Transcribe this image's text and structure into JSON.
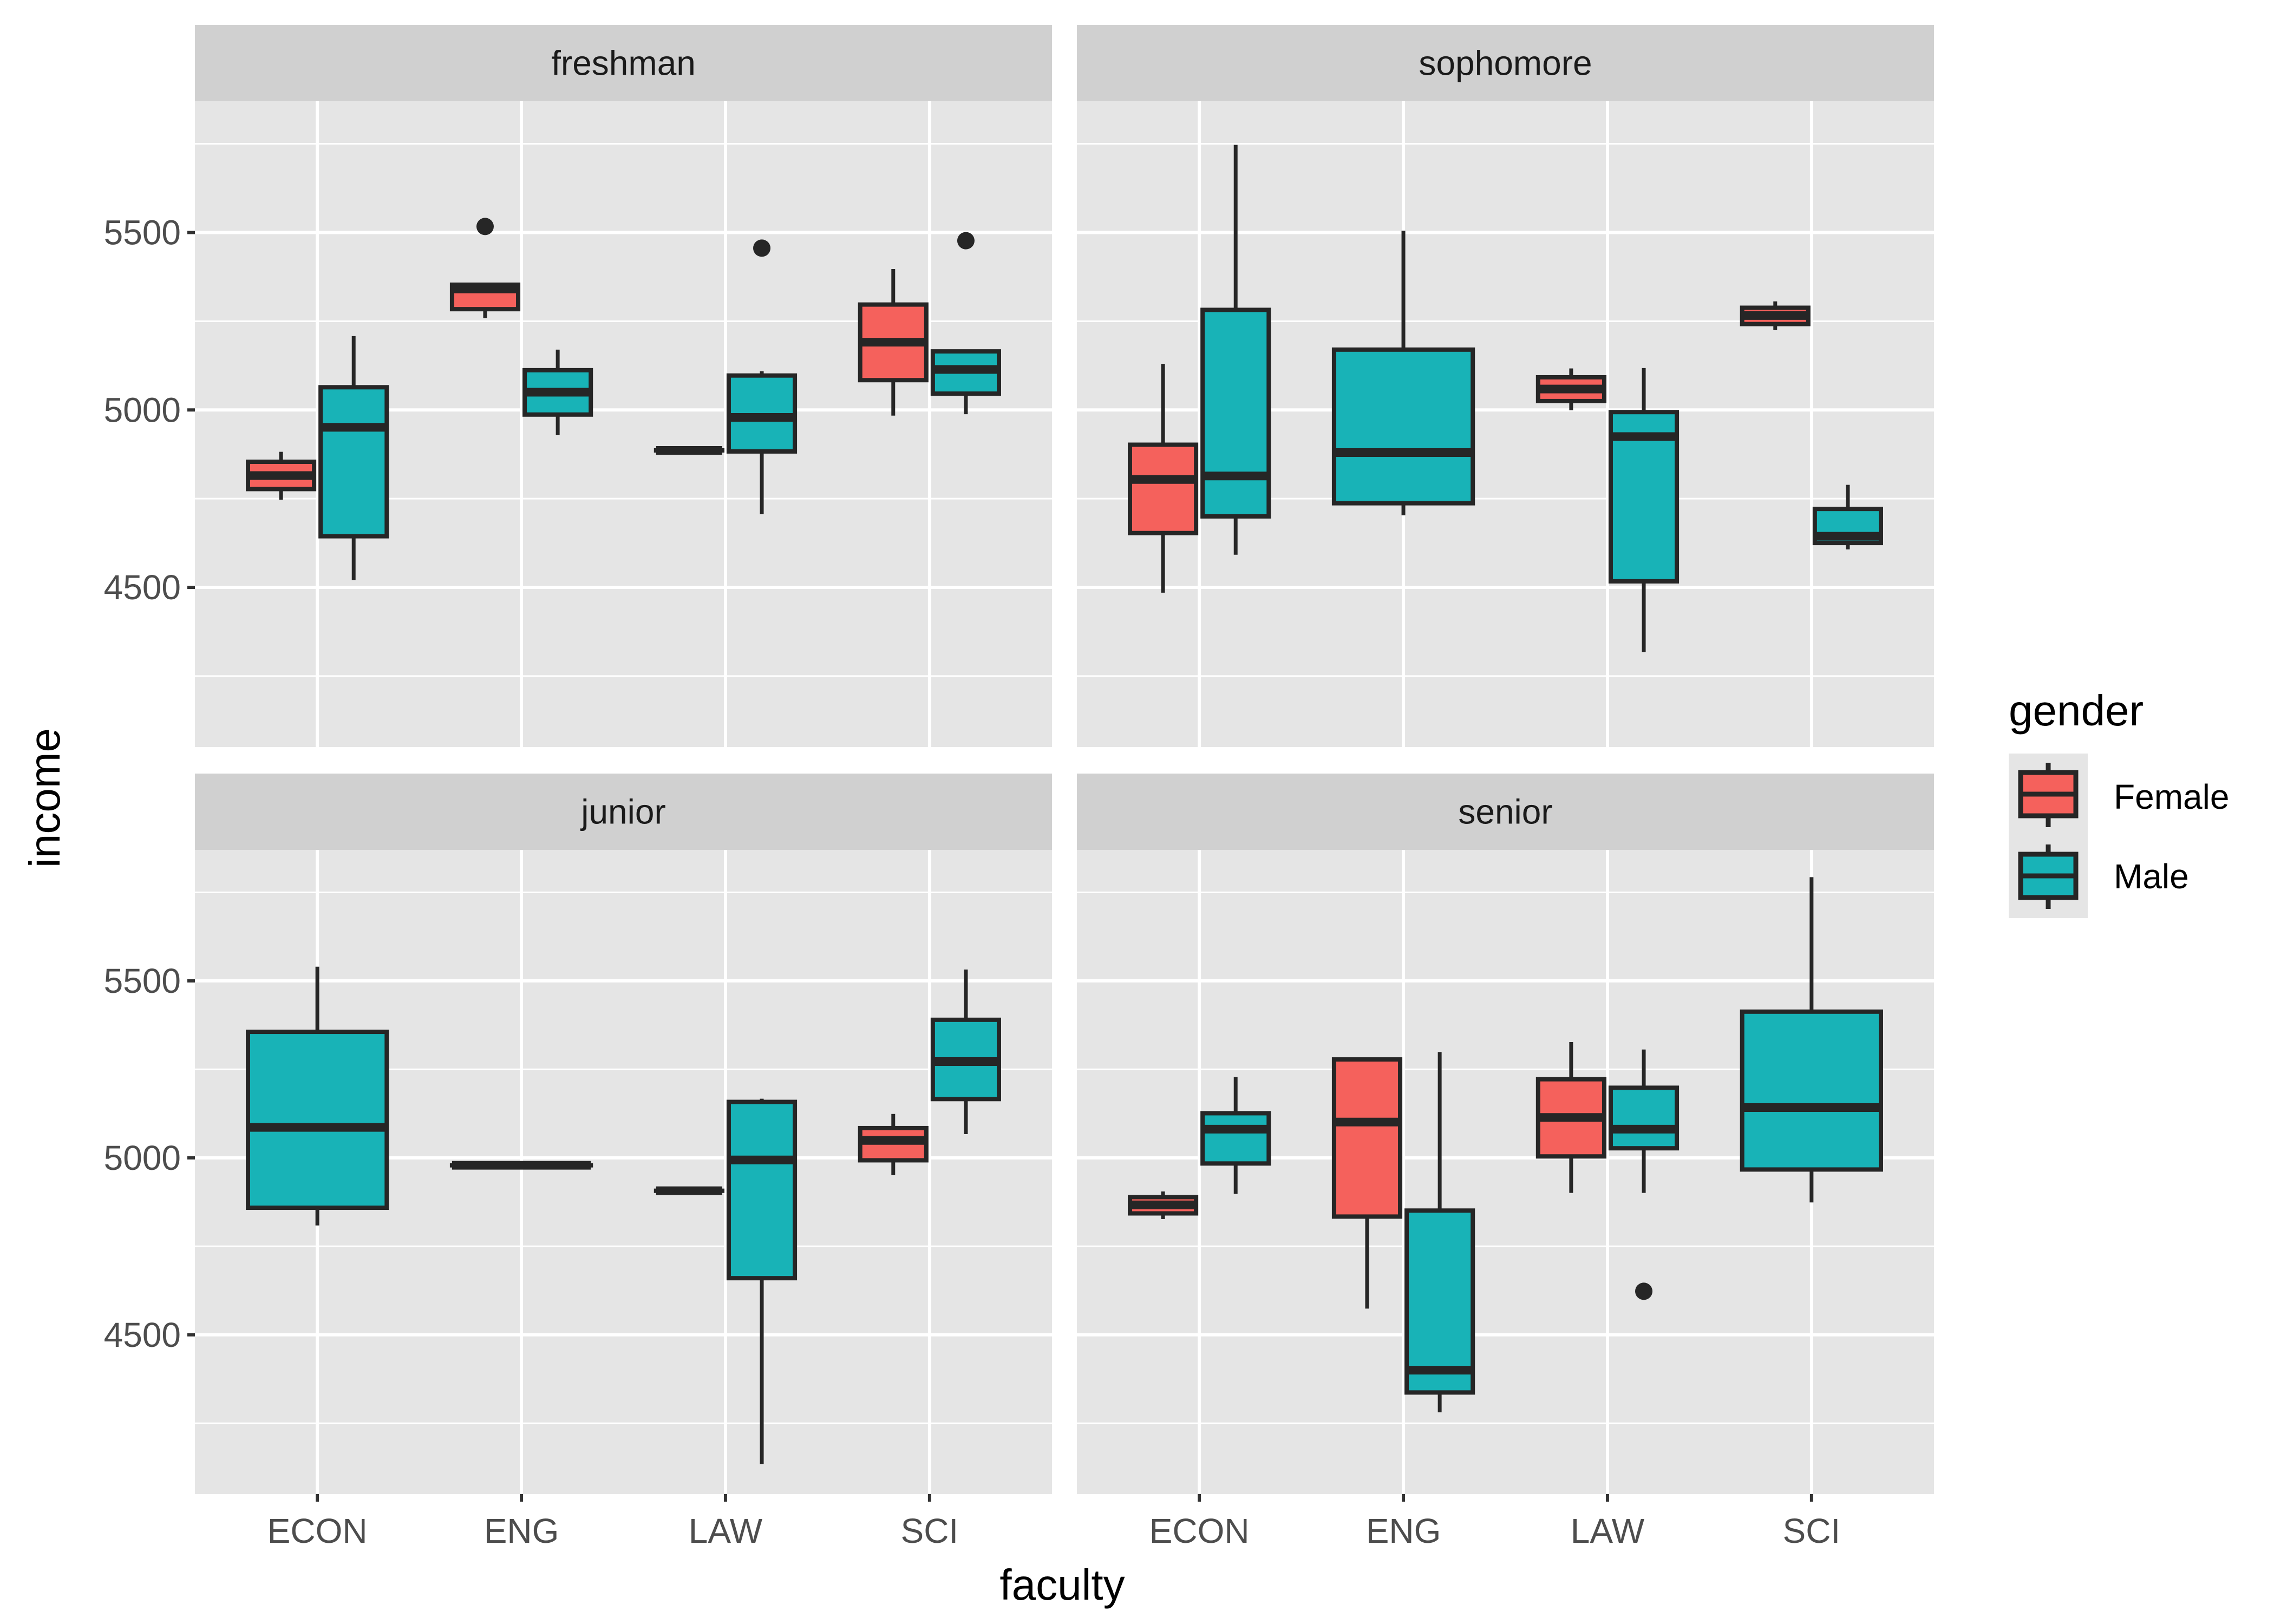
{
  "chart_data": {
    "type": "boxplot",
    "xlabel": "faculty",
    "ylabel": "income",
    "ylim": [
      4050,
      5870
    ],
    "yticks": [
      4500,
      5000,
      5500
    ],
    "yminor": [
      4250,
      4750,
      5250,
      5750
    ],
    "grid": true,
    "categories": [
      "ECON",
      "ENG",
      "LAW",
      "SCI"
    ],
    "facet_layout": "2x2",
    "legend": {
      "title": "gender",
      "position": "right",
      "entries": [
        {
          "label": "Female",
          "color": "#F5615C"
        },
        {
          "label": "Male",
          "color": "#18B3B7"
        }
      ]
    },
    "colors": {
      "Female": "#F5615C",
      "Male": "#18B3B7",
      "outline": "#262626",
      "panel": "#E5E5E5",
      "strip": "#D0D0D0",
      "grid": "#FFFFFF"
    },
    "panels": [
      {
        "title": "freshman",
        "boxes": [
          {
            "faculty": "ECON",
            "gender": "Female",
            "ymin": 4747,
            "q1": 4777,
            "median": 4815,
            "q3": 4854,
            "ymax": 4882,
            "outliers": []
          },
          {
            "faculty": "ECON",
            "gender": "Male",
            "ymin": 4521,
            "q1": 4644,
            "median": 4951,
            "q3": 5064,
            "ymax": 5208,
            "outliers": []
          },
          {
            "faculty": "ENG",
            "gender": "Female",
            "ymin": 5259,
            "q1": 5284,
            "median": 5341,
            "q3": 5353,
            "ymax": 5353,
            "outliers": [
              5517
            ]
          },
          {
            "faculty": "ENG",
            "gender": "Male",
            "ymin": 4929,
            "q1": 4987,
            "median": 5050,
            "q3": 5112,
            "ymax": 5170,
            "outliers": []
          },
          {
            "faculty": "LAW",
            "gender": "Female",
            "ymin": 4886,
            "q1": 4886,
            "median": 4886,
            "q3": 4886,
            "ymax": 4886,
            "outliers": []
          },
          {
            "faculty": "LAW",
            "gender": "Male",
            "ymin": 4706,
            "q1": 4883,
            "median": 4979,
            "q3": 5097,
            "ymax": 5109,
            "outliers": [
              5456
            ]
          },
          {
            "faculty": "SCI",
            "gender": "Female",
            "ymin": 4984,
            "q1": 5084,
            "median": 5191,
            "q3": 5297,
            "ymax": 5397,
            "outliers": []
          },
          {
            "faculty": "SCI",
            "gender": "Male",
            "ymin": 4988,
            "q1": 5046,
            "median": 5114,
            "q3": 5165,
            "ymax": 5165,
            "outliers": [
              5477
            ]
          }
        ]
      },
      {
        "title": "sophomore",
        "boxes": [
          {
            "faculty": "ECON",
            "gender": "Female",
            "ymin": 4485,
            "q1": 4653,
            "median": 4804,
            "q3": 4902,
            "ymax": 5130,
            "outliers": []
          },
          {
            "faculty": "ECON",
            "gender": "Male",
            "ymin": 4592,
            "q1": 4700,
            "median": 4814,
            "q3": 5282,
            "ymax": 5747,
            "outliers": []
          },
          {
            "faculty": "ENG",
            "gender": "Male",
            "ymin": 4703,
            "q1": 4737,
            "median": 4880,
            "q3": 5170,
            "ymax": 5505,
            "outliers": []
          },
          {
            "faculty": "LAW",
            "gender": "Female",
            "ymin": 4999,
            "q1": 5025,
            "median": 5059,
            "q3": 5092,
            "ymax": 5117,
            "outliers": []
          },
          {
            "faculty": "LAW",
            "gender": "Male",
            "ymin": 4318,
            "q1": 4517,
            "median": 4925,
            "q3": 4994,
            "ymax": 5118,
            "outliers": []
          },
          {
            "faculty": "SCI",
            "gender": "Female",
            "ymin": 5225,
            "q1": 5242,
            "median": 5266,
            "q3": 5288,
            "ymax": 5306,
            "outliers": []
          },
          {
            "faculty": "SCI",
            "gender": "Male",
            "ymin": 4607,
            "q1": 4625,
            "median": 4644,
            "q3": 4721,
            "ymax": 4789,
            "outliers": []
          }
        ]
      },
      {
        "title": "junior",
        "boxes": [
          {
            "faculty": "ECON",
            "gender": "Male",
            "ymin": 4809,
            "q1": 4859,
            "median": 5086,
            "q3": 5356,
            "ymax": 5540,
            "outliers": []
          },
          {
            "faculty": "ENG",
            "gender": "Male",
            "ymin": 4979,
            "q1": 4979,
            "median": 4979,
            "q3": 4979,
            "ymax": 4979,
            "outliers": []
          },
          {
            "faculty": "LAW",
            "gender": "Female",
            "ymin": 4907,
            "q1": 4907,
            "median": 4907,
            "q3": 4907,
            "ymax": 4907,
            "outliers": []
          },
          {
            "faculty": "LAW",
            "gender": "Male",
            "ymin": 4135,
            "q1": 4660,
            "median": 4994,
            "q3": 5158,
            "ymax": 5167,
            "outliers": []
          },
          {
            "faculty": "SCI",
            "gender": "Female",
            "ymin": 4951,
            "q1": 4993,
            "median": 5049,
            "q3": 5084,
            "ymax": 5124,
            "outliers": []
          },
          {
            "faculty": "SCI",
            "gender": "Male",
            "ymin": 5067,
            "q1": 5166,
            "median": 5272,
            "q3": 5390,
            "ymax": 5532,
            "outliers": []
          }
        ]
      },
      {
        "title": "senior",
        "boxes": [
          {
            "faculty": "ECON",
            "gender": "Female",
            "ymin": 4827,
            "q1": 4843,
            "median": 4867,
            "q3": 4889,
            "ymax": 4905,
            "outliers": []
          },
          {
            "faculty": "ECON",
            "gender": "Male",
            "ymin": 4898,
            "q1": 4984,
            "median": 5081,
            "q3": 5126,
            "ymax": 5228,
            "outliers": []
          },
          {
            "faculty": "ENG",
            "gender": "Female",
            "ymin": 4574,
            "q1": 4834,
            "median": 5101,
            "q3": 5278,
            "ymax": 5278,
            "outliers": []
          },
          {
            "faculty": "ENG",
            "gender": "Male",
            "ymin": 4281,
            "q1": 4337,
            "median": 4400,
            "q3": 4851,
            "ymax": 5299,
            "outliers": []
          },
          {
            "faculty": "LAW",
            "gender": "Female",
            "ymin": 4901,
            "q1": 5004,
            "median": 5114,
            "q3": 5222,
            "ymax": 5327,
            "outliers": []
          },
          {
            "faculty": "LAW",
            "gender": "Male",
            "ymin": 4901,
            "q1": 5027,
            "median": 5081,
            "q3": 5198,
            "ymax": 5306,
            "outliers": [
              4623
            ]
          },
          {
            "faculty": "SCI",
            "gender": "Male",
            "ymin": 4874,
            "q1": 4967,
            "median": 5142,
            "q3": 5413,
            "ymax": 5793,
            "outliers": []
          }
        ]
      }
    ]
  }
}
